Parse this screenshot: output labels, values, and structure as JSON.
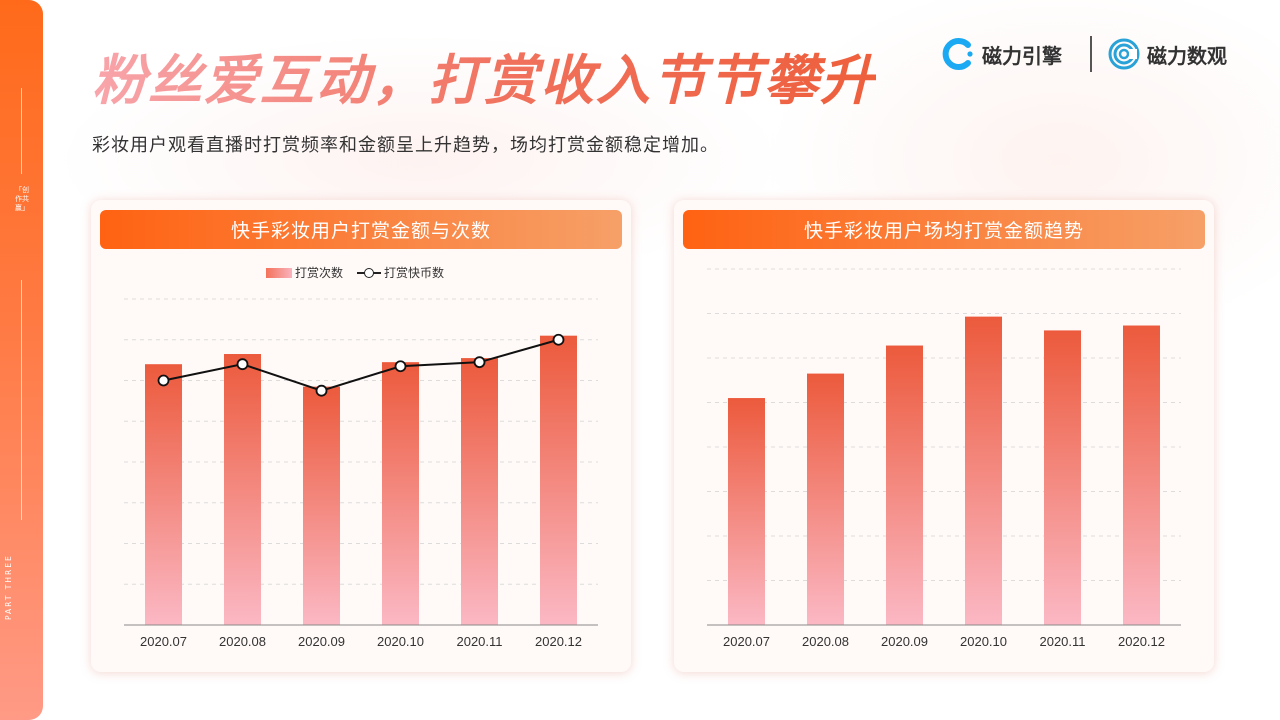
{
  "page": {
    "title": "粉丝爱互动，打赏收入节节攀升",
    "subtitle": "彩妆用户观看直播时打赏频率和金额呈上升趋势，场均打赏金额稳定增加。",
    "side_tag": "「创作共赢」",
    "side_part": "PART THREE"
  },
  "brands": [
    {
      "name": "磁力引擎",
      "icon": "magnetic-engine-logo-icon"
    },
    {
      "name": "磁力数观",
      "icon": "magnetic-insight-logo-icon"
    }
  ],
  "colors": {
    "accent": "#ff6a1a",
    "bar_top": "#ec5a3c",
    "bar_bottom": "#fbb8c4",
    "line": "#111111"
  },
  "charts_meta": {
    "left_title": "快手彩妆用户打赏金额与次数",
    "right_title": "快手彩妆用户场均打赏金额趋势",
    "legend_bar": "打赏次数",
    "legend_line": "打赏快币数"
  },
  "chart_data": [
    {
      "type": "bar",
      "title": "快手彩妆用户打赏金额与次数",
      "categories": [
        "2020.07",
        "2020.08",
        "2020.09",
        "2020.10",
        "2020.11",
        "2020.12"
      ],
      "series": [
        {
          "name": "打赏次数",
          "type": "bar",
          "values": [
            6.4,
            6.65,
            5.85,
            6.45,
            6.55,
            7.1
          ]
        },
        {
          "name": "打赏快币数",
          "type": "line",
          "values": [
            6.0,
            6.4,
            5.75,
            6.35,
            6.45,
            7.0
          ]
        }
      ],
      "ylim": [
        0,
        8
      ],
      "grid": true,
      "legend": "top-center",
      "axis_labels_visible": false
    },
    {
      "type": "bar",
      "title": "快手彩妆用户场均打赏金额趋势",
      "categories": [
        "2020.07",
        "2020.08",
        "2020.09",
        "2020.10",
        "2020.11",
        "2020.12"
      ],
      "values": [
        5.1,
        5.65,
        6.28,
        6.93,
        6.62,
        6.73
      ],
      "ylim": [
        0,
        8
      ],
      "grid": true,
      "axis_labels_visible": false
    }
  ]
}
